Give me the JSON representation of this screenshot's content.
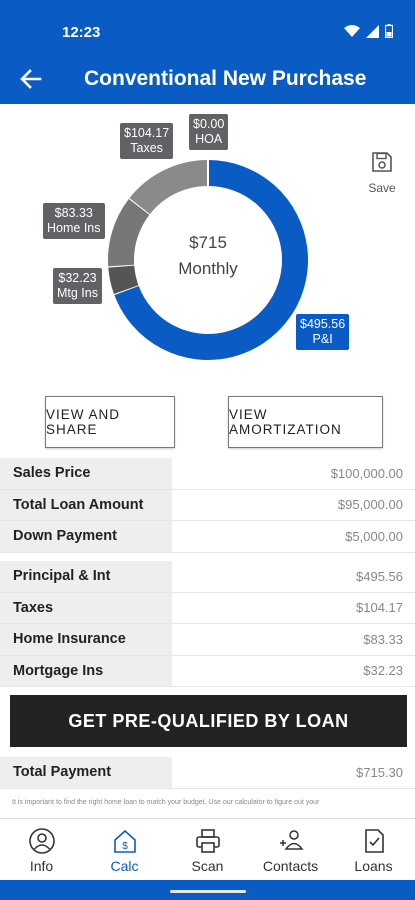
{
  "status": {
    "time": "12:23"
  },
  "header": {
    "title": "Conventional New Purchase"
  },
  "chart_data": {
    "type": "pie",
    "center": {
      "value": "$715",
      "label": "Monthly"
    },
    "slices": [
      {
        "name": "P&I",
        "value": 495.56,
        "display": "$495.56",
        "color": "#0b5bc4"
      },
      {
        "name": "Mtg Ins",
        "value": 32.23,
        "display": "$32.23",
        "color": "#555555"
      },
      {
        "name": "Home Ins",
        "value": 83.33,
        "display": "$83.33",
        "color": "#777777"
      },
      {
        "name": "Taxes",
        "value": 104.17,
        "display": "$104.17",
        "color": "#8a8a8a"
      },
      {
        "name": "HOA",
        "value": 0.0,
        "display": "$0.00",
        "color": "#999999"
      }
    ]
  },
  "save": {
    "label": "Save"
  },
  "actions": {
    "share": "VIEW AND SHARE",
    "amortization": "VIEW AMORTIZATION"
  },
  "loan_table": [
    {
      "label": "Sales Price",
      "value": "$100,000.00"
    },
    {
      "label": "Total Loan Amount",
      "value": "$95,000.00"
    },
    {
      "label": "Down Payment",
      "value": "$5,000.00"
    }
  ],
  "payment_table": [
    {
      "label": "Principal & Int",
      "value": "$495.56"
    },
    {
      "label": "Taxes",
      "value": "$104.17"
    },
    {
      "label": "Home Insurance",
      "value": "$83.33"
    },
    {
      "label": "Mortgage Ins",
      "value": "$32.23"
    }
  ],
  "cta": {
    "label": "GET PRE-QUALIFIED BY LOAN"
  },
  "total": {
    "label": "Total Payment",
    "value": "$715.30"
  },
  "disclaimer": "It is important to find the right home loan to match your budget. Use our calculator to figure out your",
  "nav": [
    {
      "label": "Info",
      "icon": "person-icon"
    },
    {
      "label": "Calc",
      "icon": "calc-house-icon"
    },
    {
      "label": "Scan",
      "icon": "printer-icon"
    },
    {
      "label": "Contacts",
      "icon": "contacts-icon"
    },
    {
      "label": "Loans",
      "icon": "document-check-icon"
    }
  ]
}
